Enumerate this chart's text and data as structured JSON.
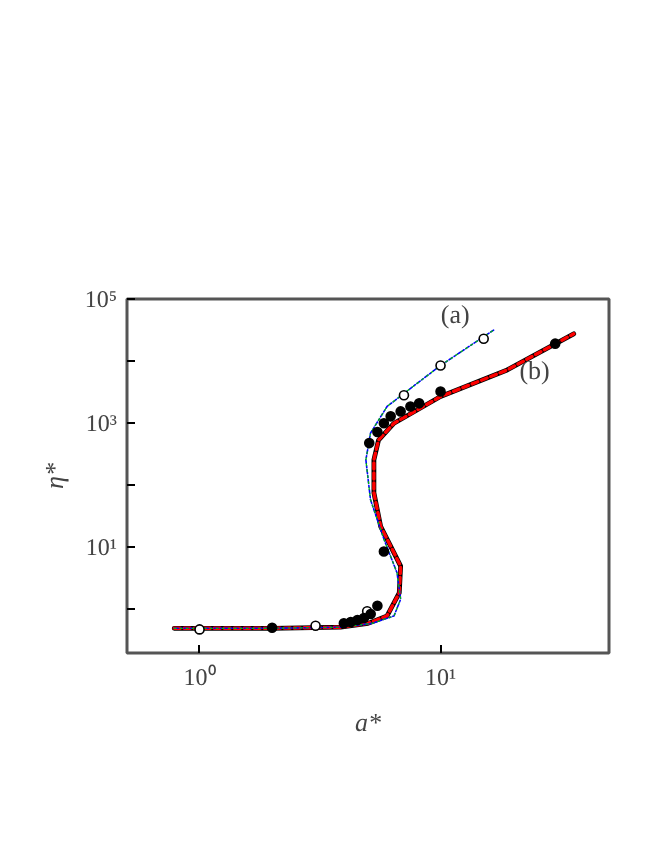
{
  "chart_data": {
    "type": "line",
    "xlabel": "a*",
    "ylabel": "η*",
    "log": "xy",
    "grid": false,
    "xlim": [
      0.5,
      50
    ],
    "ylim": [
      0.2,
      100000
    ],
    "xticks": [
      {
        "value": 1,
        "label": "10⁰"
      },
      {
        "value": 10,
        "label": "10¹"
      }
    ],
    "yticks": [
      {
        "value": 1,
        "label": null
      },
      {
        "value": 10,
        "label": "10¹"
      },
      {
        "value": 100,
        "label": null
      },
      {
        "value": 1000,
        "label": "10³"
      },
      {
        "value": 10000,
        "label": null
      },
      {
        "value": 100000,
        "label": "10⁵"
      }
    ],
    "series": [
      {
        "name": "(b)",
        "color": "#000000",
        "line_style": "solid",
        "marker": "none",
        "x": [
          0.785,
          2.0,
          3.85,
          5.0,
          6.0,
          6.74,
          6.83,
          6.41,
          5.64,
          5.29,
          5.29,
          5.53,
          6.41,
          10,
          18.9,
          35.7
        ],
        "values": [
          0.5,
          0.5,
          0.52,
          0.6,
          0.79,
          1.86,
          5.0,
          8.2,
          21.9,
          76,
          257,
          537,
          1000,
          2690,
          7200,
          27500
        ]
      },
      {
        "color": "#ff0000",
        "line_style": "dashed",
        "marker": "none",
        "x": [
          0.785,
          2.0,
          3.85,
          5.0,
          6.0,
          6.74,
          6.83,
          6.41,
          5.64,
          5.29,
          5.29,
          5.53,
          6.41,
          10,
          18.9,
          35.7
        ],
        "values": [
          0.5,
          0.5,
          0.52,
          0.6,
          0.79,
          1.86,
          5.0,
          8.2,
          21.9,
          76,
          257,
          537,
          1000,
          2690,
          7200,
          27500
        ]
      },
      {
        "name": "(a)",
        "color": "#0000ff",
        "line_style": "dashdot",
        "marker": "none",
        "x": [
          0.785,
          2.0,
          3.85,
          5.2,
          6.41,
          6.83,
          6.6,
          5.83,
          5.12,
          4.9,
          5.12,
          6.0,
          7.05,
          10,
          16.6
        ],
        "values": [
          0.5,
          0.5,
          0.52,
          0.6,
          0.79,
          1.47,
          3.9,
          13.4,
          59,
          257,
          692,
          1860,
          3020,
          8510,
          31600
        ]
      },
      {
        "color": "#00c000",
        "line_style": "dotted",
        "marker": "none",
        "x": [
          0.785,
          2.0,
          3.85,
          5.2,
          6.41,
          6.83,
          6.6,
          5.83,
          5.12,
          4.9,
          5.12,
          6.0,
          7.05,
          10,
          16.6
        ],
        "values": [
          0.5,
          0.5,
          0.52,
          0.6,
          0.79,
          1.47,
          3.9,
          13.4,
          59,
          257,
          692,
          1860,
          3020,
          8510,
          31600
        ]
      },
      {
        "type": "scatter",
        "color": "#ffffff",
        "marker": "circle",
        "x": [
          1.0,
          3.03,
          4.96,
          7.05,
          10,
          15.1
        ],
        "values": [
          0.48,
          0.55,
          0.94,
          2820,
          8510,
          22900
        ]
      },
      {
        "type": "scatter",
        "color": "#000000",
        "marker": "circle",
        "x": [
          2.0,
          3.97,
          4.24,
          4.52,
          4.81,
          5.13,
          5.47,
          5.82,
          5.06,
          5.47,
          5.82,
          6.21,
          6.83,
          7.5,
          8.15,
          10,
          29.9
        ],
        "values": [
          0.51,
          0.6,
          0.63,
          0.68,
          0.73,
          0.85,
          1.15,
          8.6,
          479,
          724,
          1000,
          1290,
          1550,
          1860,
          2090,
          3240,
          19100
        ]
      }
    ]
  }
}
